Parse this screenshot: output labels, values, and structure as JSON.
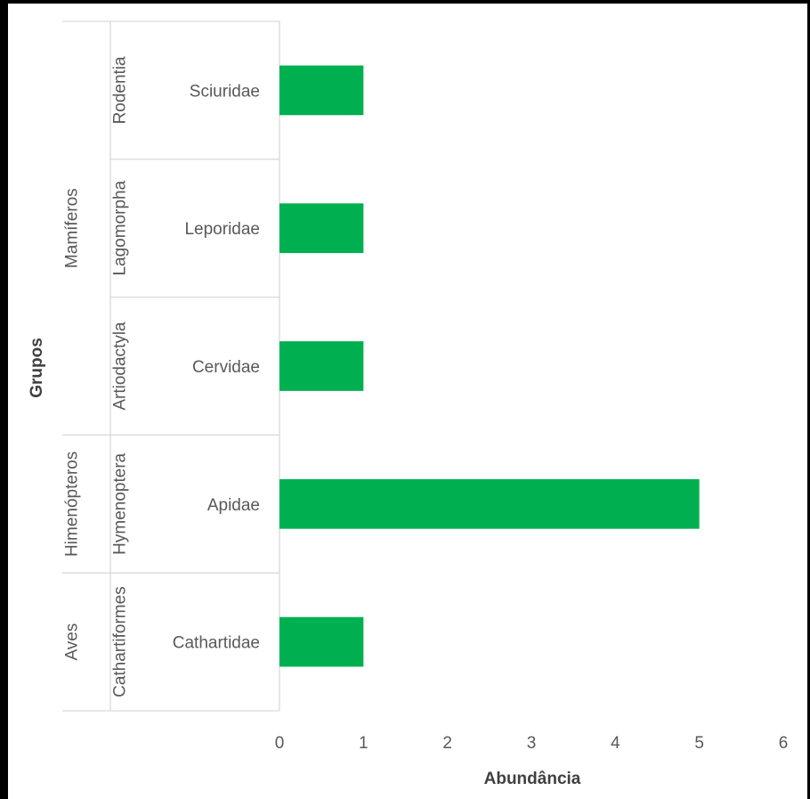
{
  "chart_data": {
    "type": "bar",
    "orientation": "horizontal",
    "categories": [
      "Cathartidae",
      "Apidae",
      "Cervidae",
      "Leporidae",
      "Sciuridae"
    ],
    "values": [
      1,
      5,
      1,
      1,
      1
    ],
    "orders": [
      {
        "label": "Cathartiformes",
        "from": 0,
        "to": 0
      },
      {
        "label": "Hymenoptera",
        "from": 1,
        "to": 1
      },
      {
        "label": "Artiodactyla",
        "from": 2,
        "to": 2
      },
      {
        "label": "Lagomorpha",
        "from": 3,
        "to": 3
      },
      {
        "label": "Rodentia",
        "from": 4,
        "to": 4
      }
    ],
    "groups": [
      {
        "label": "Aves",
        "from": 0,
        "to": 0
      },
      {
        "label": "Himenópteros",
        "from": 1,
        "to": 1
      },
      {
        "label": "Mamíferos",
        "from": 2,
        "to": 4
      }
    ],
    "xlabel": "Abundância",
    "ylabel": "Grupos",
    "xlim": [
      0,
      6
    ],
    "xticks": [
      0,
      1,
      2,
      3,
      4,
      5,
      6
    ],
    "bar_color": "#00B050",
    "grid": false,
    "legend": "none"
  }
}
